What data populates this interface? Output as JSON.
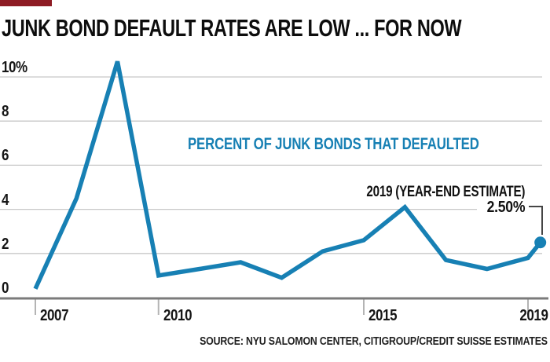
{
  "title": "JUNK BOND DEFAULT RATES ARE LOW ... FOR NOW",
  "series_label": "PERCENT OF JUNK BONDS THAT DEFAULTED",
  "annotation": {
    "note": "2019 (YEAR-END ESTIMATE)",
    "value": "2.50%"
  },
  "source": "SOURCE: NYU SALOMON CENTER, CITIGROUP/CREDIT SUISSE ESTIMATES",
  "colors": {
    "line": "#1780B4",
    "series_label": "#1780B4",
    "accent_bar": "#8E1C24",
    "gridline": "#C8C8C8",
    "axis": "#7B7B7B",
    "tick": "#B4B4B4",
    "bracket": "#454545",
    "text": "#121212"
  },
  "y_axis": {
    "labels": [
      {
        "value": 10,
        "label": "10%"
      },
      {
        "value": 8,
        "label": "8"
      },
      {
        "value": 6,
        "label": "6"
      },
      {
        "value": 4,
        "label": "4"
      },
      {
        "value": 2,
        "label": "2"
      },
      {
        "value": 0,
        "label": "0"
      }
    ]
  },
  "x_axis": {
    "ticks": [
      {
        "year": 2007,
        "label": "2007",
        "align": "left"
      },
      {
        "year": 2010,
        "label": "2010",
        "align": "left"
      },
      {
        "year": 2015,
        "label": "2015",
        "align": "left"
      },
      {
        "year": 2019,
        "label": "2019",
        "align": "right"
      }
    ]
  },
  "chart_data": {
    "type": "line",
    "title": "JUNK BOND DEFAULT RATES ARE LOW ... FOR NOW",
    "ylabel": "PERCENT OF JUNK BONDS THAT DEFAULTED",
    "xlabel": "",
    "ylim": [
      0,
      11
    ],
    "xlim": [
      2007,
      2019.4
    ],
    "grid": true,
    "legend": "none",
    "x": [
      2007,
      2008,
      2009,
      2010,
      2011,
      2012,
      2013,
      2014,
      2015,
      2016,
      2017,
      2018,
      2019
    ],
    "values": [
      0.4,
      4.5,
      10.7,
      1.0,
      1.3,
      1.6,
      0.9,
      2.1,
      2.6,
      4.1,
      1.7,
      1.3,
      1.8
    ],
    "estimate_point": {
      "year": 2019.3,
      "value": 2.5,
      "label": "2.50%",
      "note": "2019 (YEAR-END ESTIMATE)"
    }
  }
}
